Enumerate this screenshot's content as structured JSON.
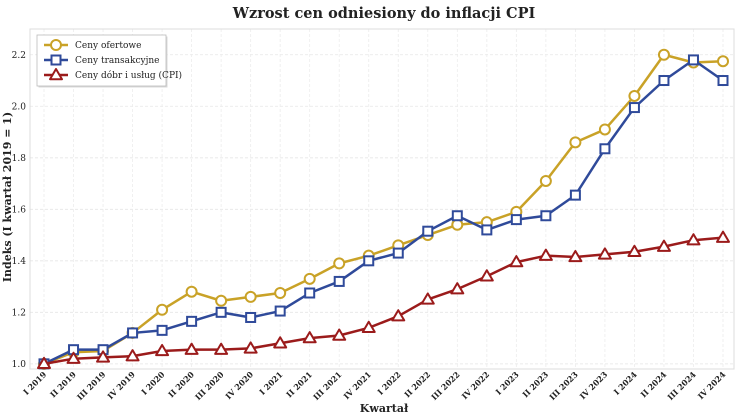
{
  "chart_data": {
    "type": "line",
    "title": "Wzrost cen odniesiony do inflacji CPI",
    "xlabel": "Kwartał",
    "ylabel": "Indeks (I kwartał 2019 = 1)",
    "ylim": [
      0.98,
      2.3
    ],
    "yticks": [
      "1.0",
      "1.2",
      "1.4",
      "1.6",
      "1.8",
      "2.0",
      "2.2"
    ],
    "grid": true,
    "legend_position": "top-left",
    "categories": [
      "I 2019",
      "II 2019",
      "III 2019",
      "IV 2019",
      "I 2020",
      "II 2020",
      "III 2020",
      "IV 2020",
      "I 2021",
      "II 2021",
      "III 2021",
      "IV 2021",
      "I 2022",
      "II 2022",
      "III 2022",
      "IV 2022",
      "I 2023",
      "II 2023",
      "III 2023",
      "IV 2023",
      "I 2024",
      "II 2024",
      "III 2024",
      "IV 2024"
    ],
    "series": [
      {
        "name": "Ceny ofertowe",
        "color": "#C9A227",
        "marker": "circle",
        "values": [
          1.0,
          1.045,
          1.05,
          1.12,
          1.21,
          1.28,
          1.245,
          1.26,
          1.275,
          1.33,
          1.39,
          1.42,
          1.46,
          1.5,
          1.54,
          1.55,
          1.59,
          1.71,
          1.86,
          1.91,
          2.04,
          2.2,
          2.17,
          2.175
        ]
      },
      {
        "name": "Ceny transakcyjne",
        "color": "#2F4A9A",
        "marker": "square",
        "values": [
          1.0,
          1.055,
          1.055,
          1.12,
          1.13,
          1.165,
          1.2,
          1.18,
          1.205,
          1.275,
          1.32,
          1.4,
          1.43,
          1.515,
          1.575,
          1.52,
          1.56,
          1.575,
          1.655,
          1.835,
          1.995,
          2.1,
          2.18,
          2.1
        ]
      },
      {
        "name": "Ceny dóbr i usług (CPI)",
        "color": "#9B1B1B",
        "marker": "triangle",
        "values": [
          1.0,
          1.02,
          1.025,
          1.03,
          1.05,
          1.055,
          1.055,
          1.06,
          1.08,
          1.1,
          1.11,
          1.14,
          1.185,
          1.25,
          1.29,
          1.34,
          1.395,
          1.42,
          1.415,
          1.425,
          1.435,
          1.455,
          1.48,
          1.49
        ]
      }
    ]
  }
}
